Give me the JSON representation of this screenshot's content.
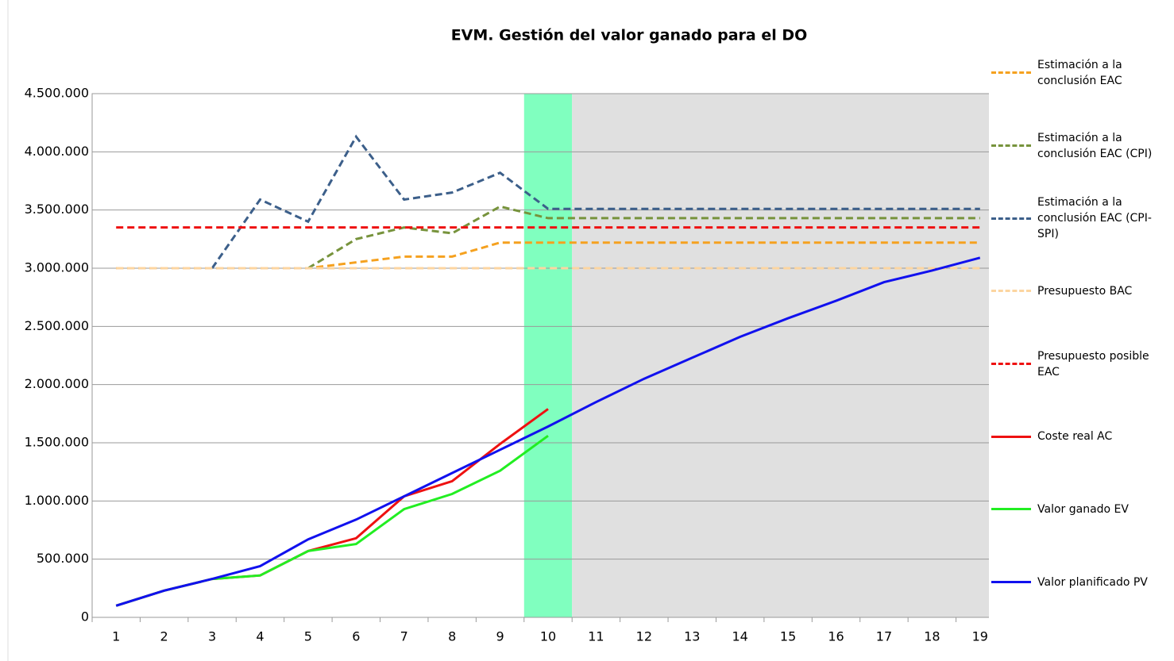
{
  "chart_data": {
    "type": "line",
    "title": "EVM. Gestión del valor ganado para el DO",
    "categories": [
      "1",
      "2",
      "3",
      "4",
      "5",
      "6",
      "7",
      "8",
      "9",
      "10",
      "11",
      "12",
      "13",
      "14",
      "15",
      "16",
      "17",
      "18",
      "19"
    ],
    "ylim": [
      0,
      4500000
    ],
    "yticks": [
      0,
      {
        "value": 500000,
        "label": "500.000"
      },
      {
        "value": 1000000,
        "label": "1.000.000"
      },
      {
        "value": 1500000,
        "label": "1.500.000"
      },
      {
        "value": 2000000,
        "label": "2.000.000"
      },
      {
        "value": 2500000,
        "label": "2.500.000"
      },
      {
        "value": 3000000,
        "label": "3.000.000"
      },
      {
        "value": 3500000,
        "label": "3.500.000"
      },
      {
        "value": 4000000,
        "label": "4.000.000"
      },
      {
        "value": 4500000,
        "label": "4.500.000"
      }
    ],
    "grid": true,
    "legend": "right",
    "series": [
      {
        "name": "Estimación a la conclusión EAC",
        "color": "#f5a11f",
        "dashed": true,
        "values": [
          3000000,
          3000000,
          3000000,
          3000000,
          3000000,
          3050000,
          3100000,
          3100000,
          3220000,
          3220000,
          3220000,
          3220000,
          3220000,
          3220000,
          3220000,
          3220000,
          3220000,
          3220000,
          3220000
        ]
      },
      {
        "name": "Estimación a la conclusión EAC (CPI)",
        "color": "#77933c",
        "dashed": true,
        "values": [
          null,
          null,
          null,
          null,
          3000000,
          3250000,
          3350000,
          3300000,
          3530000,
          3430000,
          3430000,
          3430000,
          3430000,
          3430000,
          3430000,
          3430000,
          3430000,
          3430000,
          3430000
        ]
      },
      {
        "name": "Estimación a la conclusión EAC (CPI-SPI)",
        "color": "#3c5f8a",
        "dashed": true,
        "values": [
          null,
          null,
          3000000,
          3590000,
          3400000,
          4130000,
          3590000,
          3650000,
          3820000,
          3510000,
          3510000,
          3510000,
          3510000,
          3510000,
          3510000,
          3510000,
          3510000,
          3510000,
          3510000
        ]
      },
      {
        "name": "Presupuesto BAC",
        "color": "#fcd5a0",
        "dashed": true,
        "values": [
          3000000,
          3000000,
          3000000,
          3000000,
          3000000,
          3000000,
          3000000,
          3000000,
          3000000,
          3000000,
          3000000,
          3000000,
          3000000,
          3000000,
          3000000,
          3000000,
          3000000,
          3000000,
          3000000
        ]
      },
      {
        "name": "Presupuesto posible EAC",
        "color": "#ee1111",
        "dashed": true,
        "values": [
          3350000,
          3350000,
          3350000,
          3350000,
          3350000,
          3350000,
          3350000,
          3350000,
          3350000,
          3350000,
          3350000,
          3350000,
          3350000,
          3350000,
          3350000,
          3350000,
          3350000,
          3350000,
          3350000
        ]
      },
      {
        "name": "Coste real AC",
        "color": "#ee1111",
        "dashed": false,
        "values": [
          100000,
          230000,
          330000,
          360000,
          570000,
          680000,
          1040000,
          1170000,
          1490000,
          1790000,
          null,
          null,
          null,
          null,
          null,
          null,
          null,
          null,
          null
        ]
      },
      {
        "name": "Valor ganado EV",
        "color": "#22ee22",
        "dashed": false,
        "values": [
          100000,
          230000,
          330000,
          360000,
          570000,
          630000,
          930000,
          1060000,
          1260000,
          1560000,
          null,
          null,
          null,
          null,
          null,
          null,
          null,
          null,
          null
        ]
      },
      {
        "name": "Valor planificado PV",
        "color": "#1111ee",
        "dashed": false,
        "values": [
          100000,
          230000,
          330000,
          440000,
          670000,
          840000,
          1040000,
          1240000,
          1440000,
          1640000,
          1850000,
          2050000,
          2230000,
          2410000,
          2570000,
          2720000,
          2880000,
          2980000,
          3090000
        ]
      }
    ]
  }
}
